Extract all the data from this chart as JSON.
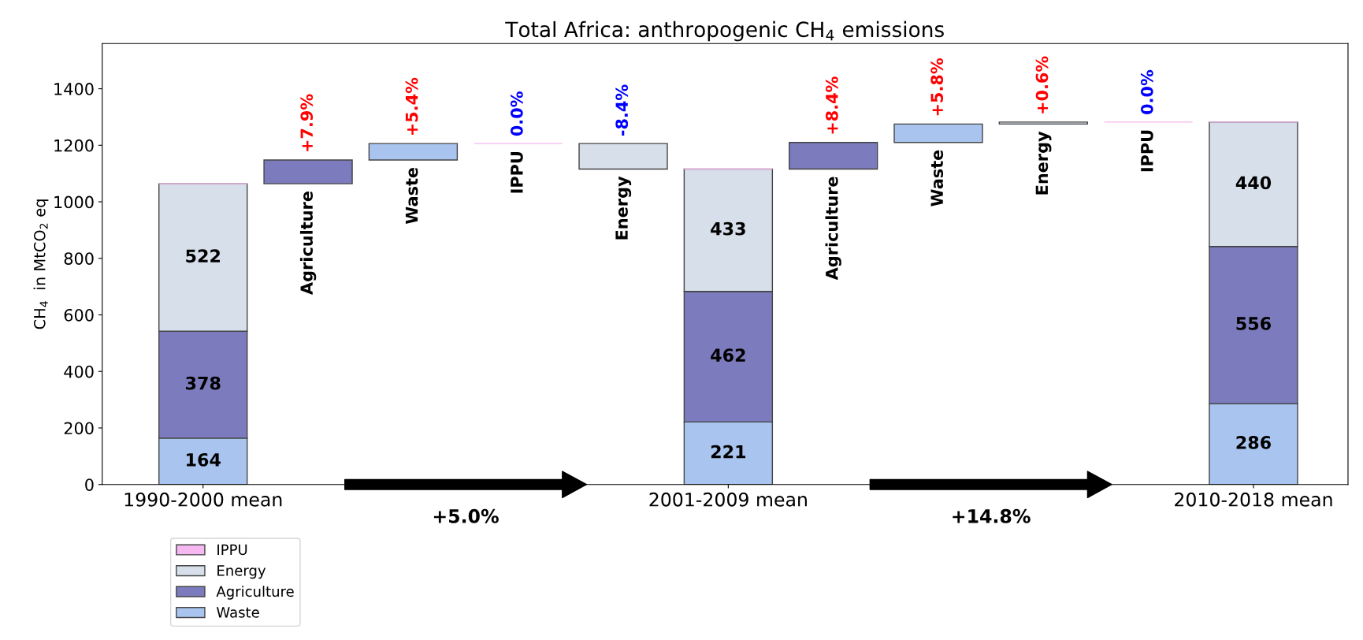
{
  "chart_data": {
    "type": "bar",
    "title": "Total Africa: anthropogenic CH$_{4}$ emissions",
    "ylabel": "CH$_{4}$  in MtCO$_{2}$ eq",
    "categories": [
      "1990-2000 mean",
      null,
      null,
      null,
      null,
      "2001-2009 mean",
      null,
      null,
      null,
      null,
      "2010-2018 mean"
    ],
    "stacked": true,
    "series": [
      {
        "name": "Waste",
        "color": "#a9c5ef",
        "values": [
          164,
          null,
          null,
          null,
          null,
          221,
          null,
          null,
          null,
          null,
          286
        ],
        "value_labels": [
          "164",
          null,
          null,
          null,
          null,
          "221",
          null,
          null,
          null,
          null,
          "286"
        ]
      },
      {
        "name": "Agriculture",
        "color": "#7b7bbd",
        "values": [
          378,
          null,
          null,
          null,
          null,
          462,
          null,
          null,
          null,
          null,
          556
        ],
        "value_labels": [
          "378",
          null,
          null,
          null,
          null,
          "462",
          null,
          null,
          null,
          null,
          "556"
        ]
      },
      {
        "name": "Energy",
        "color": "#d6dfea",
        "values": [
          522,
          null,
          null,
          null,
          null,
          433,
          null,
          null,
          null,
          null,
          440
        ],
        "value_labels": [
          "522",
          null,
          null,
          null,
          null,
          "433",
          null,
          null,
          null,
          null,
          "440"
        ]
      },
      {
        "name": "IPPU",
        "color": "#f5b8f0",
        "values": [
          0,
          null,
          null,
          null,
          null,
          0,
          null,
          null,
          null,
          null,
          0
        ]
      },
      {
        "colors": [
          null,
          "#7b7bbd",
          "#a9c5ef",
          "#f5b8f0",
          "#d6dfea",
          null,
          "#7b7bbd",
          "#a9c5ef",
          "#d6dfea",
          "#f5b8f0",
          null
        ],
        "base": [
          null,
          1064,
          1148,
          1206,
          1206,
          null,
          1116,
          1210,
          1275,
          1282,
          null
        ],
        "values": [
          null,
          84,
          58,
          0,
          -90,
          null,
          94,
          65,
          7,
          0,
          null
        ]
      }
    ],
    "annotations": [
      "Agriculture",
      "Waste",
      "IPPU",
      "Energy",
      "Agriculture",
      "Waste",
      "Energy",
      "IPPU",
      "+7.9%",
      "+5.4%",
      "0.0%",
      "-8.4%",
      "+8.4%",
      "+5.8%",
      "+0.6%",
      "0.0%",
      "+5.0%",
      "+14.8%"
    ],
    "ylim": [
      0,
      1560
    ],
    "yticks": [
      0,
      200,
      400,
      600,
      800,
      1000,
      1200,
      1400
    ],
    "legend": "bottom",
    "grid": false
  }
}
